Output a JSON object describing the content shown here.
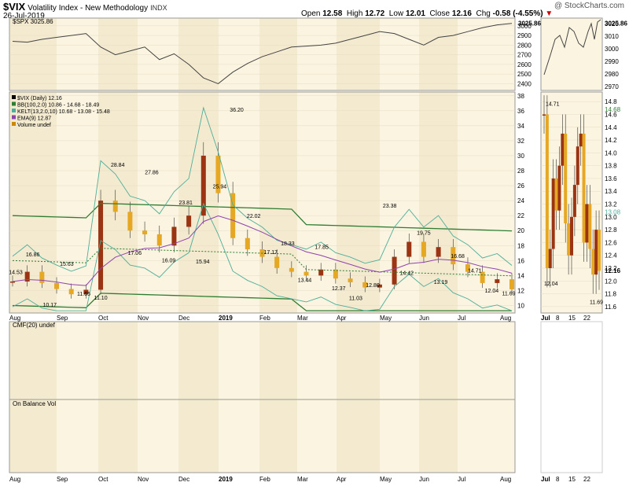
{
  "header": {
    "symbol": "$VIX",
    "name": "Volatility Index - New Methodology",
    "exchange": "INDX",
    "date": "26-Jul-2019",
    "watermark": "@ StockCharts.com",
    "open_label": "Open",
    "open": "12.58",
    "high_label": "High",
    "high": "12.72",
    "low_label": "Low",
    "low": "12.01",
    "close_label": "Close",
    "close": "12.16",
    "chg_label": "Chg",
    "chg": "-0.58 (-4.55%)",
    "chg_arrow": "▼"
  },
  "colors": {
    "panel_bg": "#fbf4e0",
    "band_bg": "#f4ead0",
    "up_candle": "#e6a723",
    "down_candle": "#9a3412",
    "bb_color": "#2e7d32",
    "kelt_color": "#4caf9a",
    "ema_color": "#8e44ad",
    "spx_color": "#444444"
  },
  "legend": {
    "spx": "$SPX 3025.86",
    "vix": "$VIX (Daily) 12.16",
    "bb": "BB(100,2.0) 10.86 - 14.68 - 18.49",
    "kelt": "KELT(13,2.0,10) 10.68 - 13.08 - 15.48",
    "ema": "EMA(9) 12.87",
    "volume": "Volume undef",
    "cmf": "CMF(20) undef",
    "obv": "On Balance Vol"
  },
  "x_labels": [
    "Aug",
    "Sep",
    "Oct",
    "Nov",
    "Dec",
    "2019",
    "Feb",
    "Mar",
    "Apr",
    "May",
    "Jun",
    "Jul",
    "Aug"
  ],
  "zoom_x_labels": [
    "Jul",
    "8",
    "15",
    "22"
  ],
  "chart_data": [
    {
      "type": "line",
      "title": "$SPX 3025.86",
      "y_ticks": [
        "3000",
        "2900",
        "2800",
        "2700",
        "2600",
        "2500",
        "2400"
      ],
      "ylim": [
        2330,
        3080
      ],
      "last_value_label": "3025.86",
      "x": [
        "Aug 2018",
        "mid Aug",
        "Sep",
        "mid Sep",
        "late Sep",
        "Oct",
        "mid Oct",
        "late Oct",
        "Nov",
        "mid Nov",
        "late Nov",
        "Dec",
        "mid Dec",
        "late Dec",
        "2019",
        "mid Jan",
        "late Jan",
        "Feb",
        "mid Feb",
        "late Feb",
        "Mar",
        "mid Mar",
        "late Mar",
        "Apr",
        "mid Apr",
        "late Apr",
        "May",
        "mid May",
        "late May",
        "Jun",
        "mid Jun",
        "late Jun",
        "Jul",
        "mid Jul",
        "late Jul"
      ],
      "series": [
        {
          "values": [
            2840,
            2830,
            2860,
            2880,
            2900,
            2920,
            2780,
            2700,
            2740,
            2780,
            2650,
            2710,
            2600,
            2460,
            2400,
            2520,
            2610,
            2680,
            2730,
            2780,
            2790,
            2800,
            2820,
            2860,
            2900,
            2940,
            2920,
            2860,
            2800,
            2880,
            2900,
            2940,
            2980,
            3010,
            3025
          ]
        }
      ]
    },
    {
      "type": "line",
      "title": "$VIX (Daily) 12.16",
      "y_ticks": [
        "38",
        "36",
        "34",
        "32",
        "30",
        "28",
        "26",
        "24",
        "22",
        "20",
        "18",
        "16",
        "14",
        "12",
        "10"
      ],
      "ylim": [
        9,
        38.5
      ],
      "x": [
        "Aug 2018",
        "mid Aug",
        "Sep",
        "mid Sep",
        "late Sep",
        "Oct",
        "mid Oct",
        "late Oct",
        "Nov",
        "mid Nov",
        "late Nov",
        "Dec",
        "mid Dec",
        "late Dec",
        "2019",
        "mid Jan",
        "late Jan",
        "Feb",
        "mid Feb",
        "late Feb",
        "Mar",
        "mid Mar",
        "late Mar",
        "Apr",
        "mid Apr",
        "late Apr",
        "May",
        "mid May",
        "late May",
        "Jun",
        "mid Jun",
        "late Jun",
        "Jul",
        "mid Jul",
        "late Jul"
      ],
      "series": [
        {
          "values": [
            13.2,
            14.5,
            13.0,
            12.2,
            11.5,
            12.1,
            24.0,
            22.5,
            20.0,
            19.5,
            18.0,
            20.5,
            22.0,
            30.0,
            25.0,
            19.0,
            17.5,
            16.5,
            15.0,
            14.5,
            14.0,
            14.8,
            13.6,
            13.1,
            12.4,
            12.8,
            16.5,
            18.5,
            16.5,
            17.8,
            15.5,
            14.5,
            13.0,
            13.5,
            12.16
          ]
        }
      ],
      "annotations": [
        "14.53",
        "16.86",
        "10.17",
        "15.63",
        "11.65",
        "11.10",
        "28.84",
        "17.06",
        "27.86",
        "16.09",
        "23.81",
        "15.94",
        "25.94",
        "36.20",
        "22.02",
        "17.17",
        "18.33",
        "13.44",
        "17.85",
        "12.37",
        "11.03",
        "12.80",
        "23.38",
        "14.42",
        "19.75",
        "13.19",
        "16.68",
        "14.71",
        "12.04",
        "11.69"
      ]
    },
    {
      "type": "line",
      "title": "$VIX Jul 2019",
      "y_ticks": [
        "14.8",
        "14.6",
        "14.4",
        "14.2",
        "14.0",
        "13.8",
        "13.6",
        "13.4",
        "13.2",
        "13.0",
        "12.8",
        "12.6",
        "12.4",
        "12.2",
        "12.0",
        "11.8",
        "11.6"
      ],
      "ylim": [
        11.5,
        14.95
      ],
      "x": [
        "Jul 1",
        "Jul 2",
        "Jul 3",
        "Jul 5",
        "Jul 8",
        "Jul 9",
        "Jul 10",
        "Jul 11",
        "Jul 12",
        "Jul 15",
        "Jul 16",
        "Jul 17",
        "Jul 18",
        "Jul 19",
        "Jul 22",
        "Jul 23",
        "Jul 24",
        "Jul 25",
        "Jul 26"
      ],
      "series": [
        {
          "values": [
            14.6,
            12.2,
            12.5,
            13.6,
            13.1,
            13.8,
            14.3,
            12.9,
            12.4,
            13.0,
            13.5,
            14.1,
            14.3,
            12.6,
            13.2,
            12.5,
            12.1,
            12.8,
            12.16
          ]
        }
      ],
      "annotations": [
        "14.71",
        "12.04",
        "11.69",
        "14.68",
        "13.08",
        "12.16"
      ],
      "last_value_label": "12.16"
    }
  ]
}
